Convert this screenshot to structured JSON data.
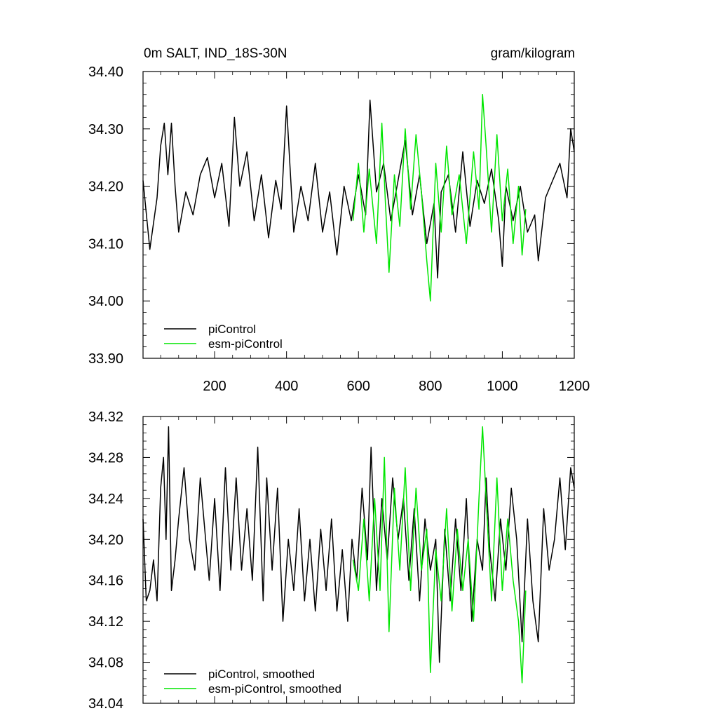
{
  "chart_data": [
    {
      "type": "line",
      "title_left": "0m SALT, IND_18S-30N",
      "title_right": "gram/kilogram",
      "xlim": [
        1,
        1200
      ],
      "ylim": [
        33.9,
        34.4
      ],
      "xticks": [
        200,
        400,
        600,
        800,
        1000,
        1200
      ],
      "yticks": [
        33.9,
        34.0,
        34.1,
        34.2,
        34.3,
        34.4
      ],
      "ytick_labels": [
        "33.90",
        "34.00",
        "34.10",
        "34.20",
        "34.30",
        "34.40"
      ],
      "legend": {
        "placement": "bottom-left",
        "entries": [
          "piControl",
          "esm-piControl"
        ]
      },
      "series": [
        {
          "name": "piControl",
          "color": "#000000",
          "x": [
            1,
            20,
            40,
            50,
            60,
            70,
            80,
            90,
            100,
            120,
            140,
            160,
            180,
            200,
            220,
            240,
            255,
            270,
            290,
            310,
            330,
            350,
            370,
            385,
            400,
            420,
            440,
            460,
            480,
            500,
            520,
            540,
            560,
            580,
            600,
            620,
            632,
            650,
            670,
            690,
            710,
            730,
            750,
            770,
            790,
            810,
            820,
            830,
            850,
            870,
            890,
            910,
            930,
            950,
            970,
            990,
            1000,
            1010,
            1030,
            1050,
            1070,
            1090,
            1100,
            1120,
            1140,
            1160,
            1180,
            1190,
            1200
          ],
          "values": [
            34.21,
            34.09,
            34.18,
            34.27,
            34.31,
            34.22,
            34.31,
            34.2,
            34.12,
            34.19,
            34.15,
            34.22,
            34.25,
            34.18,
            34.24,
            34.13,
            34.32,
            34.2,
            34.26,
            34.14,
            34.22,
            34.11,
            34.21,
            34.16,
            34.34,
            34.12,
            34.2,
            34.14,
            34.24,
            34.12,
            34.19,
            34.08,
            34.2,
            34.14,
            34.22,
            34.15,
            34.35,
            34.19,
            34.24,
            34.14,
            34.21,
            34.28,
            34.15,
            34.22,
            34.1,
            34.17,
            34.04,
            34.19,
            34.22,
            34.12,
            34.26,
            34.13,
            34.21,
            34.17,
            34.23,
            34.14,
            34.06,
            34.2,
            34.14,
            34.2,
            34.12,
            34.15,
            34.07,
            34.18,
            34.21,
            34.24,
            34.18,
            34.3,
            34.26
          ]
        },
        {
          "name": "esm-piControl",
          "color": "#00e600",
          "x": [
            585,
            600,
            615,
            630,
            650,
            665,
            675,
            685,
            700,
            715,
            730,
            745,
            760,
            775,
            790,
            800,
            815,
            830,
            845,
            860,
            880,
            900,
            920,
            935,
            945,
            955,
            970,
            985,
            1000,
            1015,
            1030,
            1045,
            1055,
            1065
          ],
          "values": [
            34.14,
            34.24,
            34.12,
            34.23,
            34.1,
            34.31,
            34.17,
            34.05,
            34.22,
            34.13,
            34.3,
            34.16,
            34.29,
            34.19,
            34.07,
            34.0,
            34.24,
            34.12,
            34.27,
            34.15,
            34.22,
            34.1,
            34.26,
            34.16,
            34.36,
            34.27,
            34.12,
            34.29,
            34.14,
            34.23,
            34.1,
            34.2,
            34.08,
            34.16
          ]
        }
      ]
    },
    {
      "type": "line",
      "xlim": [
        1,
        1200
      ],
      "ylim": [
        34.04,
        34.32
      ],
      "xticks": [
        200,
        400,
        600,
        800,
        1000,
        1200
      ],
      "yticks": [
        34.04,
        34.08,
        34.12,
        34.16,
        34.2,
        34.24,
        34.28,
        34.32
      ],
      "ytick_labels": [
        "34.04",
        "34.08",
        "34.12",
        "34.16",
        "34.20",
        "34.24",
        "34.28",
        "34.32"
      ],
      "legend": {
        "placement": "bottom-left",
        "entries": [
          "piControl, smoothed",
          "esm-piControl, smoothed"
        ]
      },
      "series": [
        {
          "name": "piControl, smoothed",
          "color": "#000000",
          "x": [
            1,
            10,
            20,
            30,
            40,
            50,
            58,
            65,
            72,
            80,
            90,
            100,
            115,
            130,
            145,
            160,
            170,
            185,
            200,
            215,
            230,
            245,
            260,
            275,
            290,
            305,
            320,
            335,
            345,
            360,
            375,
            390,
            405,
            420,
            435,
            450,
            465,
            480,
            495,
            510,
            525,
            540,
            555,
            570,
            582,
            595,
            610,
            625,
            635,
            650,
            665,
            680,
            695,
            710,
            725,
            740,
            755,
            770,
            785,
            800,
            815,
            825,
            840,
            855,
            870,
            885,
            900,
            915,
            930,
            945,
            955,
            965,
            980,
            995,
            1010,
            1025,
            1040,
            1055,
            1070,
            1085,
            1100,
            1115,
            1130,
            1145,
            1160,
            1175,
            1190,
            1200
          ],
          "values": [
            34.22,
            34.14,
            34.15,
            34.18,
            34.14,
            34.25,
            34.28,
            34.2,
            34.31,
            34.15,
            34.18,
            34.22,
            34.27,
            34.2,
            34.17,
            34.26,
            34.22,
            34.16,
            34.24,
            34.15,
            34.27,
            34.17,
            34.26,
            34.17,
            34.23,
            34.16,
            34.29,
            34.14,
            34.26,
            34.17,
            34.25,
            34.12,
            34.2,
            34.15,
            34.23,
            34.14,
            34.2,
            34.13,
            34.21,
            34.15,
            34.22,
            34.13,
            34.19,
            34.12,
            34.2,
            34.16,
            34.25,
            34.18,
            34.29,
            34.15,
            34.24,
            34.18,
            34.26,
            34.2,
            34.24,
            34.16,
            34.23,
            34.14,
            34.22,
            34.17,
            34.2,
            34.08,
            34.21,
            34.14,
            34.22,
            34.15,
            34.24,
            34.12,
            34.2,
            34.17,
            34.26,
            34.19,
            34.14,
            34.22,
            34.17,
            34.25,
            34.2,
            34.1,
            34.22,
            34.14,
            34.1,
            34.23,
            34.17,
            34.2,
            34.26,
            34.19,
            34.27,
            34.25
          ]
        },
        {
          "name": "esm-piControl, smoothed",
          "color": "#00e600",
          "x": [
            585,
            600,
            615,
            630,
            645,
            660,
            672,
            685,
            700,
            715,
            730,
            745,
            760,
            775,
            790,
            800,
            815,
            830,
            845,
            860,
            875,
            890,
            905,
            920,
            935,
            945,
            955,
            970,
            985,
            1000,
            1015,
            1030,
            1045,
            1055,
            1065
          ],
          "values": [
            34.18,
            34.15,
            34.22,
            34.14,
            34.24,
            34.15,
            34.28,
            34.11,
            34.25,
            34.17,
            34.27,
            34.15,
            34.25,
            34.17,
            34.21,
            34.07,
            34.19,
            34.14,
            34.23,
            34.13,
            34.21,
            34.15,
            34.2,
            34.12,
            34.24,
            34.31,
            34.24,
            34.14,
            34.26,
            34.15,
            34.22,
            34.16,
            34.12,
            34.06,
            34.15
          ]
        }
      ]
    }
  ]
}
